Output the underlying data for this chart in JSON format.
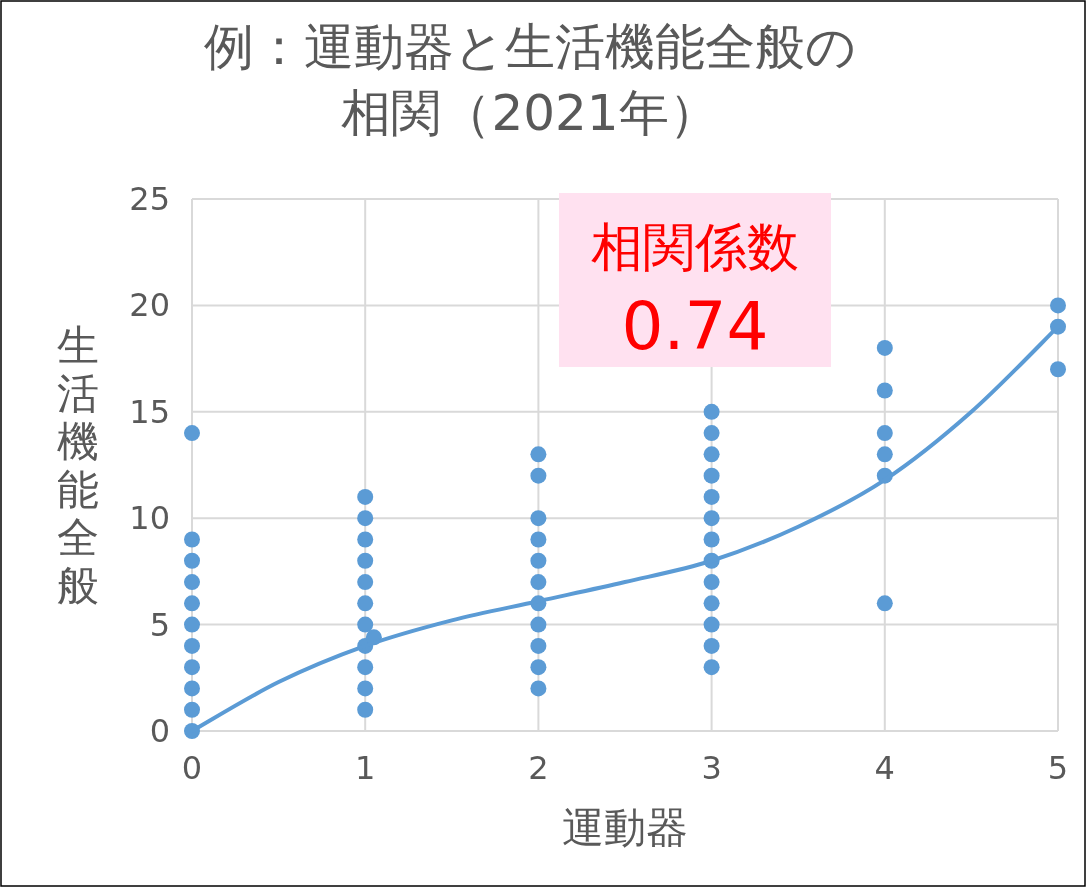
{
  "chart_data": {
    "type": "scatter",
    "title": "例：運動器と生活機能全般の相関（2021年）",
    "xlabel": "運動器",
    "ylabel": "生活機能全般",
    "annotations": [
      "相関係数",
      "0.74"
    ],
    "xlim": [
      0,
      5
    ],
    "xticks": [
      0,
      1,
      2,
      3,
      4,
      5
    ],
    "ylim": [
      0,
      25
    ],
    "yticks": [
      0,
      5,
      10,
      15,
      20,
      25
    ],
    "grid": true,
    "marker": "circle",
    "series": [
      {
        "color": "#5b9bd5",
        "x": [
          0,
          0,
          0,
          0,
          0,
          0,
          0,
          0,
          0,
          0,
          0,
          1,
          1,
          1,
          1,
          1,
          1,
          1,
          1,
          1,
          1,
          1,
          1.05,
          2,
          2,
          2,
          2,
          2,
          2,
          2,
          2,
          2,
          2,
          2,
          3,
          3,
          3,
          3,
          3,
          3,
          3,
          3,
          3,
          3,
          3,
          3,
          3,
          4,
          4,
          4,
          4,
          4,
          4,
          5,
          5,
          5
        ],
        "values": [
          0,
          1,
          2,
          3,
          4,
          5,
          6,
          7,
          8,
          9,
          14,
          1,
          2,
          3,
          4,
          5,
          6,
          7,
          8,
          9,
          10,
          11,
          4.4,
          2,
          3,
          4,
          5,
          6,
          7,
          8,
          9,
          10,
          12,
          13,
          3,
          4,
          5,
          6,
          7,
          8,
          9,
          10,
          11,
          12,
          13,
          14,
          15,
          6,
          12,
          13,
          14,
          16,
          18,
          17,
          19,
          20
        ]
      },
      {
        "type": "line",
        "color": "#5b9bd5",
        "line_style": "solid",
        "marker": "none",
        "x": [
          0,
          0.5,
          1,
          1.5,
          2,
          2.5,
          3,
          3.5,
          4,
          4.5,
          5
        ],
        "values": [
          0,
          2.3,
          4,
          5.2,
          6.1,
          7,
          8,
          9.6,
          11.8,
          15,
          19
        ]
      }
    ]
  }
}
